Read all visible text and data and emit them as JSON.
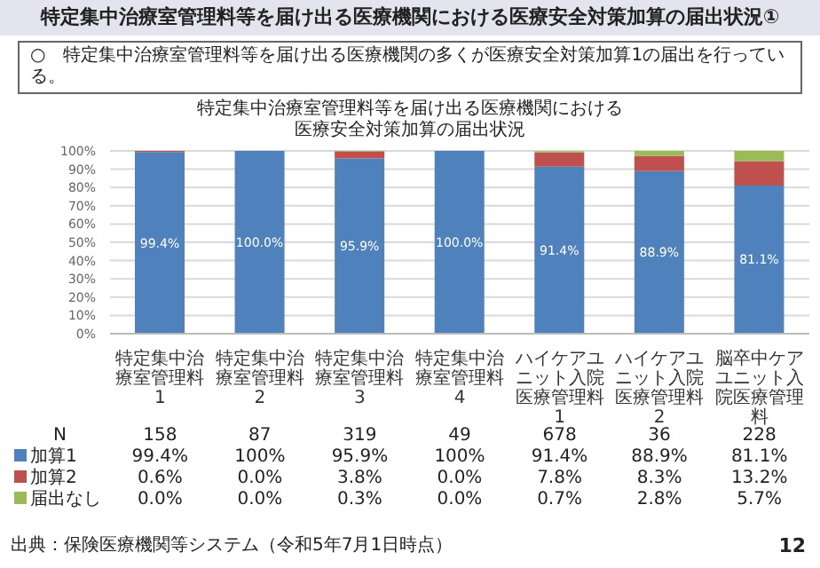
{
  "chart_data": {
    "type": "bar",
    "stacked": true,
    "title": "特定集中治療室管理料等を届け出る医療機関における医療安全対策加算の届出状況①",
    "subtitle": "○　特定集中治療室管理料等を届け出る医療機関の多くが医療安全対策加算1の届出を行っている。",
    "annotations": [
      "特定集中治療室管理料等を届け出る医療機関における医療安全対策加算の届出状況",
      "出典：保険医療機関等システム（令和5年7月1日時点）",
      "12",
      "N",
      "158",
      "87",
      "319",
      "49",
      "678",
      "36",
      "228",
      "99.4%",
      "100%",
      "95.9%",
      "100%",
      "91.4%",
      "88.9%",
      "81.1%"
    ],
    "categories": [
      "特定集中治療室管理料1",
      "特定集中治療室管理料2",
      "特定集中治療室管理料3",
      "特定集中治療室管理料4",
      "ハイケアユニット入院医療管理料1",
      "ハイケアユニット入院医療管理料2",
      "脳卒中ケアユニット入院医療管理料"
    ],
    "series": [
      {
        "name": "加算1",
        "color": "#4f81bd",
        "values": [
          99.4,
          100,
          95.9,
          100,
          91.4,
          88.9,
          81.1
        ],
        "value_labels": [
          "99.4%",
          "100.0%",
          "95.9%",
          "100.0%",
          "91.4%",
          "88.9%",
          "81.1%"
        ]
      },
      {
        "name": "加算2",
        "color": "#c0504d",
        "values": [
          0.6,
          0,
          3.8,
          0,
          7.8,
          8.3,
          13.2
        ],
        "value_labels": [
          "0.6%",
          "0.0%",
          "3.8%",
          "0.0%",
          "7.8%",
          "8.3%",
          "13.2%"
        ]
      },
      {
        "name": "届出なし",
        "color": "#9bbb59",
        "values": [
          0,
          0,
          0.3,
          0,
          0.7,
          2.8,
          5.7
        ],
        "value_labels": [
          "0.0%",
          "0.0%",
          "0.3%",
          "0.0%",
          "0.7%",
          "2.8%",
          "5.7%"
        ]
      }
    ],
    "ylim": [
      0,
      100
    ],
    "yticks": [
      {
        "value": 0,
        "label": "0%"
      },
      {
        "value": 10,
        "label": "10%"
      },
      {
        "value": 20,
        "label": "20%"
      },
      {
        "value": 30,
        "label": "30%"
      },
      {
        "value": 40,
        "label": "40%"
      },
      {
        "value": 50,
        "label": "50%"
      },
      {
        "value": 60,
        "label": "60%"
      },
      {
        "value": 70,
        "label": "70%"
      },
      {
        "value": 80,
        "label": "80%"
      },
      {
        "value": 90,
        "label": "90%"
      },
      {
        "value": 100,
        "label": "100%"
      }
    ],
    "grid": "y",
    "legend": "bottom"
  }
}
